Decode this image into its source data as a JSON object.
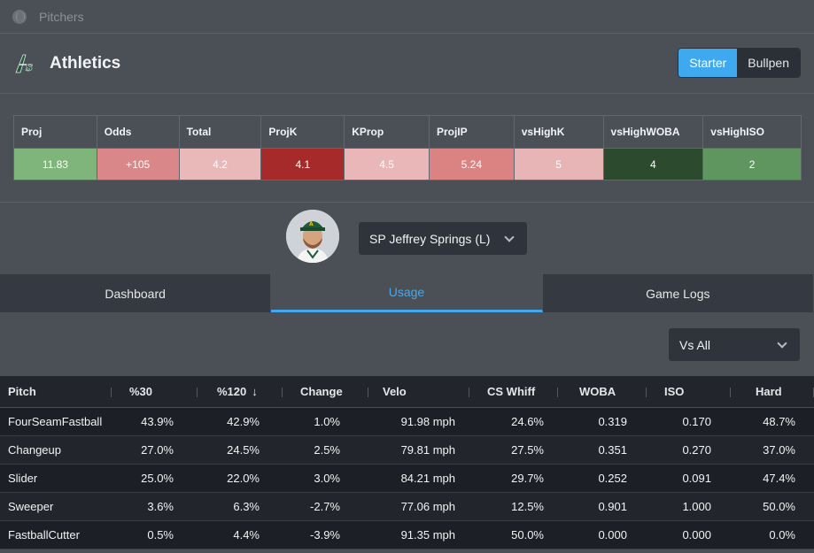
{
  "topbar": {
    "title": "Pitchers",
    "icon": "baseball-icon"
  },
  "team": {
    "name": "Athletics",
    "logo": "athletics-logo"
  },
  "toggle": {
    "starter": "Starter",
    "bullpen": "Bullpen",
    "selected": "Starter"
  },
  "metrics": {
    "headers": [
      "Proj",
      "Odds",
      "Total",
      "ProjK",
      "KProp",
      "ProjIP",
      "vsHighK",
      "vsHighWOBA",
      "vsHighISO"
    ],
    "values": [
      "11.83",
      "+105",
      "4.2",
      "4.1",
      "4.5",
      "5.24",
      "5",
      "4",
      "2"
    ],
    "colors": [
      "#7fb57a",
      "#d98788",
      "#e8b9b8",
      "#a72a2a",
      "#e9b7b8",
      "#db8283",
      "#e8b5b6",
      "#2c4b2e",
      "#5f9660"
    ]
  },
  "player": {
    "select_label": "SP Jeffrey Springs (L)"
  },
  "tabs": [
    "Dashboard",
    "Usage",
    "Game Logs"
  ],
  "active_tab": "Usage",
  "filter": {
    "label": "Vs All"
  },
  "table": {
    "columns": [
      "Pitch",
      "%30",
      "%120",
      "Change",
      "Velo",
      "CS Whiff",
      "WOBA",
      "ISO",
      "Hard"
    ],
    "sort_column": "%120",
    "rows": [
      [
        "FourSeamFastball",
        "43.9%",
        "42.9%",
        "1.0%",
        "91.98 mph",
        "24.6%",
        "0.319",
        "0.170",
        "48.7%"
      ],
      [
        "Changeup",
        "27.0%",
        "24.5%",
        "2.5%",
        "79.81 mph",
        "27.5%",
        "0.351",
        "0.270",
        "37.0%"
      ],
      [
        "Slider",
        "25.0%",
        "22.0%",
        "3.0%",
        "84.21 mph",
        "29.7%",
        "0.252",
        "0.091",
        "47.4%"
      ],
      [
        "Sweeper",
        "3.6%",
        "6.3%",
        "-2.7%",
        "77.06 mph",
        "12.5%",
        "0.901",
        "1.000",
        "50.0%"
      ],
      [
        "FastballCutter",
        "0.5%",
        "4.4%",
        "-3.9%",
        "91.35 mph",
        "50.0%",
        "0.000",
        "0.000",
        "0.0%"
      ]
    ]
  }
}
